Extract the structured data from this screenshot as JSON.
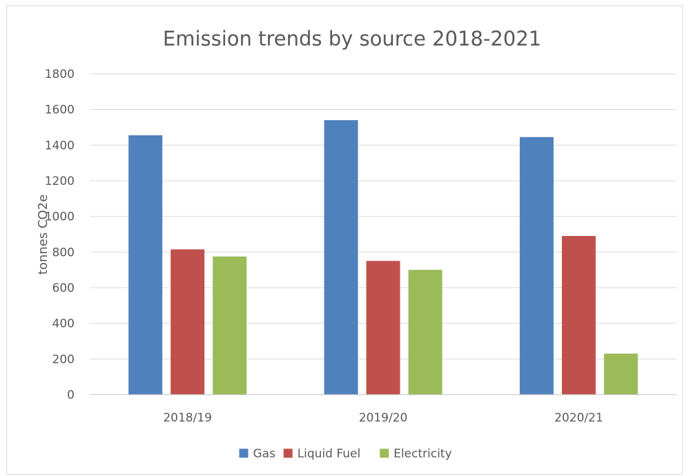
{
  "chart_data": {
    "type": "bar",
    "title": "Emission trends by source 2018-2021",
    "xlabel": "",
    "ylabel": "tonnes CO2e",
    "categories": [
      "2018/19",
      "2019/20",
      "2020/21"
    ],
    "series": [
      {
        "name": "Gas",
        "color": "#4f81bd",
        "values": [
          1455,
          1540,
          1445
        ]
      },
      {
        "name": "Liquid Fuel",
        "color": "#c0504d",
        "values": [
          815,
          750,
          890
        ]
      },
      {
        "name": "Electricity",
        "color": "#9bbb59",
        "values": [
          775,
          700,
          230
        ]
      }
    ],
    "ylim": [
      0,
      1800
    ],
    "yticks": [
      "0",
      "200",
      "400",
      "600",
      "800",
      "1000",
      "1200",
      "1400",
      "1600",
      "1800"
    ],
    "grid": true,
    "legend": "bottom",
    "colors": {
      "gridline": "#d9d9d9",
      "axis_line": "#bfbfbf",
      "text": "#595959",
      "frame_border": "#d9d9d9"
    }
  }
}
